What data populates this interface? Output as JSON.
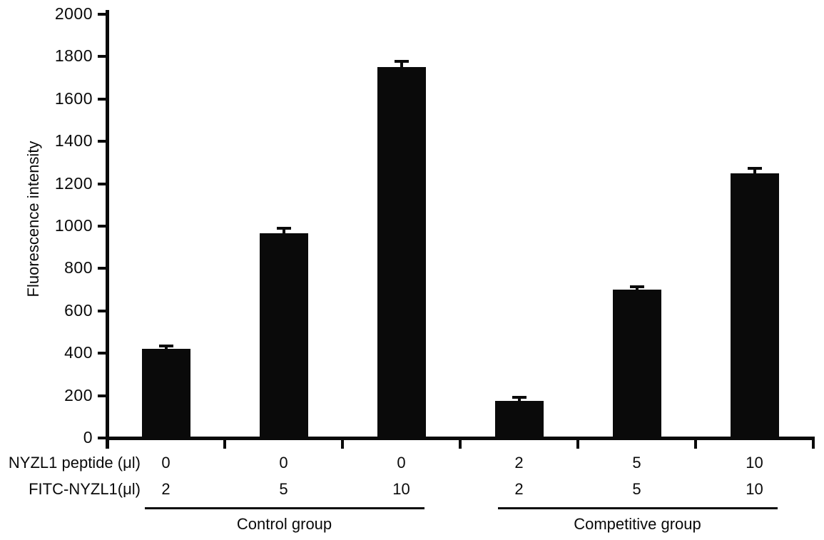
{
  "figure": {
    "background_color": "#ffffff",
    "ink_color": "#0a0a0a"
  },
  "chart_data": {
    "type": "bar",
    "title": "",
    "xlabel": "",
    "ylabel": "Fluorescence intensity",
    "ylim": [
      0,
      2000
    ],
    "ytick_interval": 200,
    "ytick_labels": [
      "0",
      "200",
      "400",
      "600",
      "800",
      "1000",
      "1200",
      "1400",
      "1600",
      "1800",
      "2000"
    ],
    "grid": false,
    "legend_position": "none",
    "bar_color": "#0a0a0a",
    "error_bars": "upper only, black caps",
    "series": [
      {
        "name": "Fluorescence intensity",
        "values": [
          420,
          965,
          1750,
          175,
          700,
          1250
        ],
        "errors_plus": [
          20,
          30,
          35,
          25,
          20,
          30
        ]
      }
    ],
    "x_rows": [
      {
        "label": "NYZL1 peptide (μl)",
        "values": [
          "0",
          "0",
          "0",
          "2",
          "5",
          "10"
        ]
      },
      {
        "label": "FITC-NYZL1(μl)",
        "values": [
          "2",
          "5",
          "10",
          "2",
          "5",
          "10"
        ]
      }
    ],
    "groups": [
      {
        "label": "Control group",
        "bar_indices": [
          0,
          1,
          2
        ]
      },
      {
        "label": "Competitive group",
        "bar_indices": [
          3,
          4,
          5
        ]
      }
    ]
  }
}
